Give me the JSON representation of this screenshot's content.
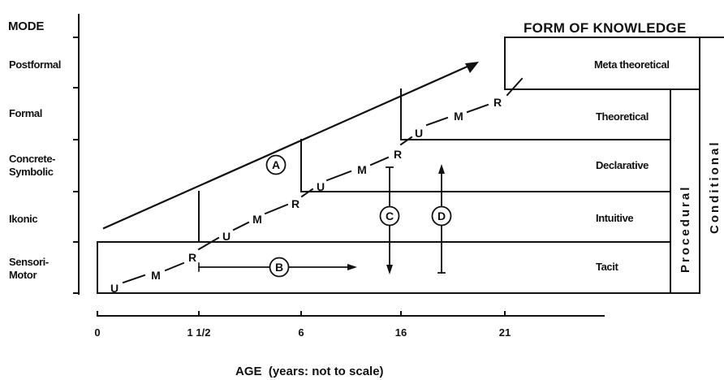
{
  "header": {
    "mode_title": "MODE",
    "knowledge_title": "FORM OF KNOWLEDGE"
  },
  "modes": [
    {
      "id": "postformal",
      "lines": [
        "Postformal"
      ]
    },
    {
      "id": "formal",
      "lines": [
        "Formal"
      ]
    },
    {
      "id": "concrete-symbolic",
      "lines": [
        "Concrete-",
        "Symbolic"
      ]
    },
    {
      "id": "ikonic",
      "lines": [
        "Ikonic"
      ]
    },
    {
      "id": "sensori-motor",
      "lines": [
        "Sensori-",
        "Motor"
      ]
    }
  ],
  "knowledge_forms": [
    "Meta theoretical",
    "Theoretical",
    "Declarative",
    "Intuitive",
    "Tacit"
  ],
  "vertical_forms": [
    "Procedural",
    "Conditional"
  ],
  "cycle_labels": [
    "U",
    "M",
    "R",
    "U",
    "M",
    "R",
    "U",
    "M",
    "R",
    "U",
    "M",
    "R"
  ],
  "circled_labels": [
    "A",
    "B",
    "C",
    "D"
  ],
  "age_ticks": [
    "0",
    "1 1/2",
    "6",
    "16",
    "21"
  ],
  "axis_label": "AGE  (years: not to scale)"
}
